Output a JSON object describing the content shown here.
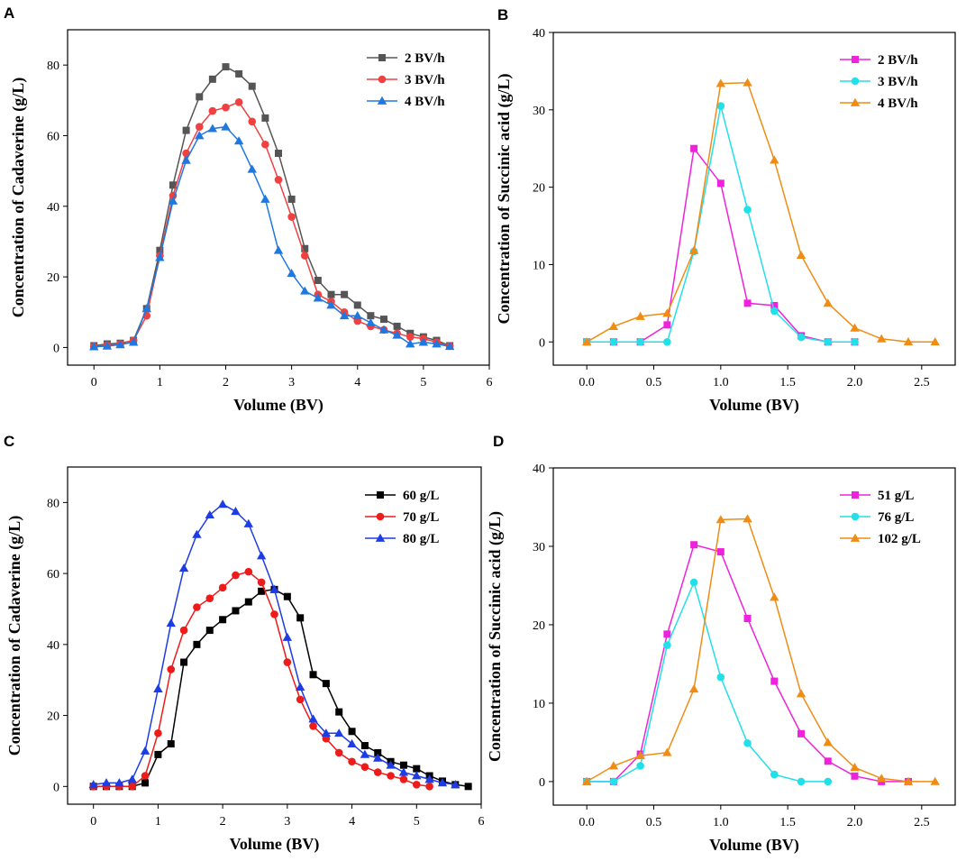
{
  "figure": {
    "panels": [
      "A",
      "B",
      "C",
      "D"
    ]
  },
  "chart_data": [
    {
      "panel": "A",
      "type": "line",
      "title": "",
      "xlabel": "Volume (BV)",
      "ylabel": "Concentration of Cadaverine (g/L)",
      "xlim": [
        -0.4,
        6
      ],
      "ylim": [
        -5,
        90
      ],
      "xticks": [
        0,
        1,
        2,
        3,
        4,
        5,
        6
      ],
      "yticks": [
        0,
        20,
        40,
        60,
        80
      ],
      "xtick_labels": [
        "0",
        "1",
        "2",
        "3",
        "4",
        "5",
        "6"
      ],
      "ytick_labels": [
        "0",
        "20",
        "40",
        "60",
        "80"
      ],
      "legend_position": "top-right",
      "series": [
        {
          "name": "2 BV/h",
          "color": "#555555",
          "marker": "square",
          "x": [
            0,
            0.2,
            0.4,
            0.6,
            0.8,
            1.0,
            1.2,
            1.4,
            1.6,
            1.8,
            2.0,
            2.2,
            2.4,
            2.6,
            2.8,
            3.0,
            3.2,
            3.4,
            3.6,
            3.8,
            4.0,
            4.2,
            4.4,
            4.6,
            4.8,
            5.0,
            5.2,
            5.4
          ],
          "y": [
            0.5,
            1,
            1.2,
            2,
            11,
            27.5,
            46,
            61.5,
            71,
            76,
            79.5,
            77.5,
            74,
            65,
            55,
            42,
            28,
            19,
            15,
            15,
            12,
            9,
            8,
            6,
            4,
            3,
            2,
            0.5
          ]
        },
        {
          "name": "3 BV/h",
          "color": "#f04040",
          "marker": "circle",
          "x": [
            0,
            0.2,
            0.4,
            0.6,
            0.8,
            1.0,
            1.2,
            1.4,
            1.6,
            1.8,
            2.0,
            2.2,
            2.4,
            2.6,
            2.8,
            3.0,
            3.2,
            3.4,
            3.6,
            3.8,
            4.0,
            4.2,
            4.4,
            4.6,
            4.8,
            5.0,
            5.2,
            5.4
          ],
          "y": [
            0.3,
            0.6,
            1,
            2,
            9,
            26,
            43,
            55,
            62.5,
            67,
            68,
            69.5,
            64,
            57.5,
            47.5,
            37,
            26,
            15,
            13,
            10,
            7.5,
            6,
            5,
            4,
            3,
            2.5,
            1.5,
            0.4
          ]
        },
        {
          "name": "4 BV/h",
          "color": "#1e78e0",
          "marker": "triangle",
          "x": [
            0,
            0.2,
            0.4,
            0.6,
            0.8,
            1.0,
            1.2,
            1.4,
            1.6,
            1.8,
            2.0,
            2.2,
            2.4,
            2.6,
            2.8,
            3.0,
            3.2,
            3.4,
            3.6,
            3.8,
            4.0,
            4.2,
            4.4,
            4.6,
            4.8,
            5.0,
            5.2,
            5.4
          ],
          "y": [
            0.2,
            0.4,
            0.8,
            1.5,
            11,
            25.5,
            41.5,
            53,
            60,
            62,
            62.5,
            58.5,
            50.5,
            42,
            27.5,
            21,
            16,
            14,
            12,
            9,
            9,
            7,
            5,
            3.5,
            1,
            1.5,
            1,
            0.3
          ]
        }
      ]
    },
    {
      "panel": "B",
      "type": "line",
      "title": "",
      "xlabel": "Volume (BV)",
      "ylabel": "Concentration of Succinic acid (g/L)",
      "xlim": [
        -0.25,
        2.75
      ],
      "ylim": [
        -3,
        40
      ],
      "xticks": [
        0.0,
        0.5,
        1.0,
        1.5,
        2.0,
        2.5
      ],
      "yticks": [
        0,
        10,
        20,
        30,
        40
      ],
      "xtick_labels": [
        "0.0",
        "0.5",
        "1.0",
        "1.5",
        "2.0",
        "2.5"
      ],
      "ytick_labels": [
        "0",
        "10",
        "20",
        "30",
        "40"
      ],
      "legend_position": "top-right",
      "series": [
        {
          "name": "2 BV/h",
          "color": "#ee22dd",
          "marker": "square",
          "x": [
            0,
            0.2,
            0.4,
            0.6,
            0.8,
            1.0,
            1.2,
            1.4,
            1.6,
            1.8,
            2.0
          ],
          "y": [
            0,
            0,
            0,
            2.2,
            25,
            20.5,
            5,
            4.7,
            0.8,
            0,
            0
          ]
        },
        {
          "name": "3 BV/h",
          "color": "#22dfe8",
          "marker": "circle",
          "x": [
            0,
            0.2,
            0.4,
            0.6,
            0.8,
            1.0,
            1.2,
            1.4,
            1.6,
            1.8,
            2.0
          ],
          "y": [
            0,
            0,
            0,
            0,
            11.7,
            30.5,
            17.1,
            4,
            0.6,
            0,
            0
          ]
        },
        {
          "name": "4 BV/h",
          "color": "#f08c14",
          "marker": "triangle",
          "x": [
            0,
            0.2,
            0.4,
            0.6,
            0.8,
            1.0,
            1.2,
            1.4,
            1.6,
            1.8,
            2.0,
            2.2,
            2.4,
            2.6
          ],
          "y": [
            0,
            2,
            3.3,
            3.7,
            11.8,
            33.4,
            33.5,
            23.5,
            11.2,
            5,
            1.8,
            0.4,
            0,
            0
          ]
        }
      ]
    },
    {
      "panel": "C",
      "type": "line",
      "title": "",
      "xlabel": "Volume (BV)",
      "ylabel": "Concentration of Cadaverine (g/L)",
      "xlim": [
        -0.4,
        6
      ],
      "ylim": [
        -5,
        90
      ],
      "xticks": [
        0,
        1,
        2,
        3,
        4,
        5,
        6
      ],
      "yticks": [
        0,
        20,
        40,
        60,
        80
      ],
      "xtick_labels": [
        "0",
        "1",
        "2",
        "3",
        "4",
        "5",
        "6"
      ],
      "ytick_labels": [
        "0",
        "20",
        "40",
        "60",
        "80"
      ],
      "legend_position": "top-right",
      "series": [
        {
          "name": "60 g/L",
          "color": "#000000",
          "marker": "square",
          "x": [
            0,
            0.2,
            0.4,
            0.6,
            0.8,
            1.0,
            1.2,
            1.4,
            1.6,
            1.8,
            2.0,
            2.2,
            2.4,
            2.6,
            2.8,
            3.0,
            3.2,
            3.4,
            3.6,
            3.8,
            4.0,
            4.2,
            4.4,
            4.6,
            4.8,
            5.0,
            5.2,
            5.4,
            5.6,
            5.8
          ],
          "y": [
            0,
            0,
            0,
            0,
            1,
            9,
            12,
            35,
            40,
            44,
            47,
            49.5,
            52,
            55,
            55.5,
            53.5,
            47.5,
            31.5,
            29,
            21,
            15.5,
            11.5,
            9.5,
            7,
            6,
            5,
            3,
            1.5,
            0.5,
            0
          ]
        },
        {
          "name": "70 g/L",
          "color": "#ee1b1b",
          "marker": "circle",
          "x": [
            0,
            0.2,
            0.4,
            0.6,
            0.8,
            1.0,
            1.2,
            1.4,
            1.6,
            1.8,
            2.0,
            2.2,
            2.4,
            2.6,
            2.8,
            3.0,
            3.2,
            3.4,
            3.6,
            3.8,
            4.0,
            4.2,
            4.4,
            4.6,
            4.8,
            5.0,
            5.2
          ],
          "y": [
            0,
            0,
            0,
            0,
            3,
            15,
            33,
            44,
            50.5,
            53,
            56,
            59.5,
            60.5,
            57.5,
            48.5,
            35,
            24.5,
            17,
            13.5,
            9.5,
            7,
            5.5,
            4,
            3,
            2,
            0.5,
            0
          ]
        },
        {
          "name": "80 g/L",
          "color": "#1e3ce6",
          "marker": "triangle",
          "x": [
            0,
            0.2,
            0.4,
            0.6,
            0.8,
            1.0,
            1.2,
            1.4,
            1.6,
            1.8,
            2.0,
            2.2,
            2.4,
            2.6,
            2.8,
            3.0,
            3.2,
            3.4,
            3.6,
            3.8,
            4.0,
            4.2,
            4.4,
            4.6,
            4.8,
            5.0,
            5.2,
            5.4,
            5.6
          ],
          "y": [
            0.5,
            1,
            1,
            2,
            10,
            27.5,
            46,
            61.5,
            71,
            76.5,
            79.5,
            77.5,
            74,
            65,
            55.5,
            42,
            28,
            19,
            15,
            15,
            12,
            9,
            8,
            6,
            4,
            3,
            2,
            1,
            0.5
          ]
        }
      ]
    },
    {
      "panel": "D",
      "type": "line",
      "title": "",
      "xlabel": "Volume (BV)",
      "ylabel": "Concentration of Succinic acid (g/L)",
      "xlim": [
        -0.25,
        2.75
      ],
      "ylim": [
        -3,
        40
      ],
      "xticks": [
        0.0,
        0.5,
        1.0,
        1.5,
        2.0,
        2.5
      ],
      "yticks": [
        0,
        10,
        20,
        30,
        40
      ],
      "xtick_labels": [
        "0.0",
        "0.5",
        "1.0",
        "1.5",
        "2.0",
        "2.5"
      ],
      "ytick_labels": [
        "0",
        "10",
        "20",
        "30",
        "40"
      ],
      "legend_position": "top-right",
      "series": [
        {
          "name": "51 g/L",
          "color": "#ee22dd",
          "marker": "square",
          "x": [
            0,
            0.2,
            0.4,
            0.6,
            0.8,
            1.0,
            1.2,
            1.4,
            1.6,
            1.8,
            2.0,
            2.2,
            2.4
          ],
          "y": [
            0,
            0,
            3.5,
            18.8,
            30.2,
            29.3,
            20.8,
            12.8,
            6.1,
            2.6,
            0.7,
            0,
            0
          ]
        },
        {
          "name": "76 g/L",
          "color": "#22dfe8",
          "marker": "circle",
          "x": [
            0,
            0.2,
            0.4,
            0.6,
            0.8,
            1.0,
            1.2,
            1.4,
            1.6,
            1.8
          ],
          "y": [
            0,
            0,
            2,
            17.4,
            25.4,
            13.3,
            4.9,
            0.9,
            0,
            0
          ]
        },
        {
          "name": "102 g/L",
          "color": "#f08c14",
          "marker": "triangle",
          "x": [
            0,
            0.2,
            0.4,
            0.6,
            0.8,
            1.0,
            1.2,
            1.4,
            1.6,
            1.8,
            2.0,
            2.2,
            2.4,
            2.6
          ],
          "y": [
            0,
            2,
            3.3,
            3.7,
            11.8,
            33.4,
            33.5,
            23.5,
            11.2,
            5,
            1.8,
            0.4,
            0,
            0
          ]
        }
      ]
    }
  ]
}
